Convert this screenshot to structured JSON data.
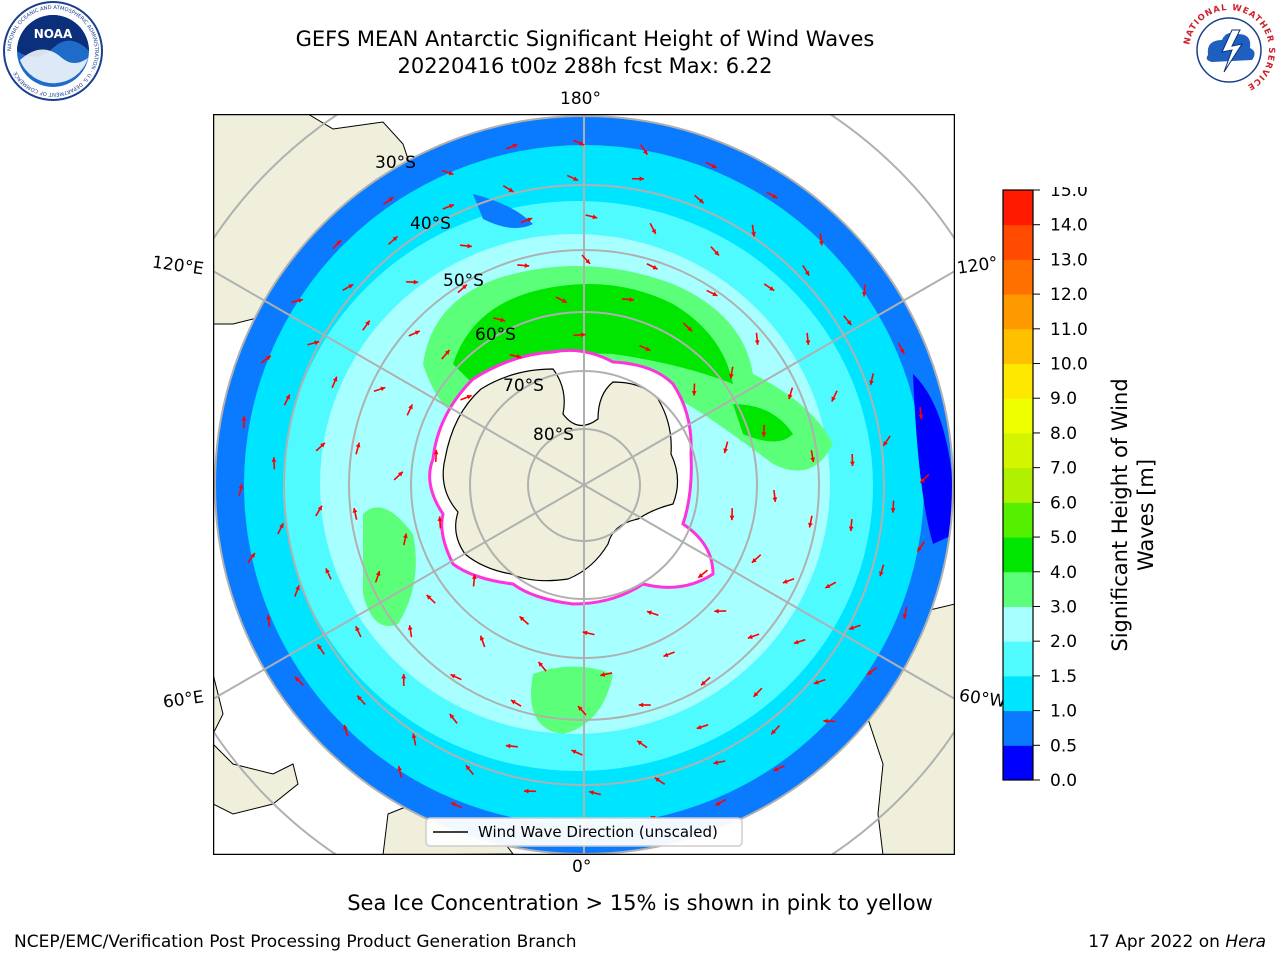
{
  "title_line1": "GEFS MEAN Antarctic Significant Height of Wind Waves",
  "title_line2": "20220416 t00z 288h fcst   Max: 6.22",
  "longitude_labels": {
    "top": "180°",
    "bottom": "0°",
    "upper_left": "120°E",
    "upper_right": "120°",
    "lower_left": "60°E",
    "lower_right": "60°W"
  },
  "latitude_labels": [
    "30°S",
    "40°S",
    "50°S",
    "60°S",
    "70°S",
    "80°S"
  ],
  "legend": {
    "label": "Wind Wave Direction (unscaled)"
  },
  "colorbar": {
    "label_line1": "Significant Height of Wind",
    "label_line2": "Waves [m]",
    "ticks": [
      "0.0",
      "0.5",
      "1.0",
      "1.5",
      "2.0",
      "3.0",
      "4.0",
      "5.0",
      "6.0",
      "7.0",
      "8.0",
      "9.0",
      "10.0",
      "11.0",
      "12.0",
      "13.0",
      "14.0",
      "15.0"
    ],
    "colors": [
      "#0000ff",
      "#0a7bff",
      "#00e5ff",
      "#50fbff",
      "#a8ffff",
      "#5cff7a",
      "#00e600",
      "#55f000",
      "#b0f000",
      "#d4f500",
      "#f0ff00",
      "#ffe800",
      "#ffc000",
      "#ff9900",
      "#ff7000",
      "#ff4a00",
      "#ff1a00"
    ]
  },
  "colors": {
    "land": "#efefdc",
    "ice": "#ffffff",
    "arrow": "#ff0000",
    "grid": "#b0b0b0",
    "ice_edge": "#ff33dd"
  },
  "sea_ice_note": "Sea Ice Concentration > 15% is shown in pink to yellow",
  "credit_left": "NCEP/EMC/Verification Post Processing Product Generation Branch",
  "credit_right_prefix": "17 Apr 2022 on ",
  "credit_right_host": "Hera",
  "logos": {
    "noaa_text": "NOAA",
    "noaa_ring": "NATIONAL OCEANIC AND ATMOSPHERIC ADMINISTRATION · U.S. DEPARTMENT OF COMMERCE",
    "nws_ring": "NATIONAL WEATHER SERVICE"
  }
}
